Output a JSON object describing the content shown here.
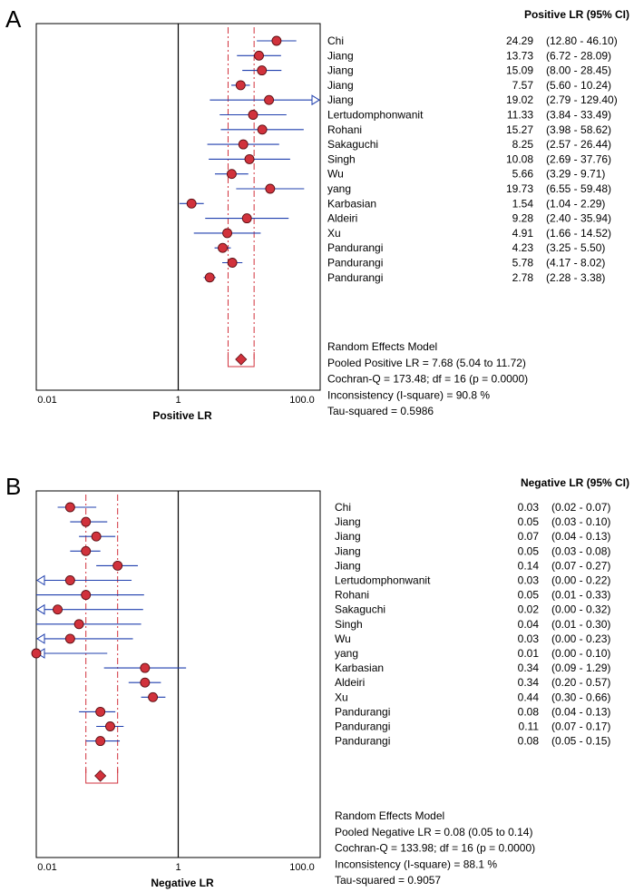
{
  "chart_data": [
    {
      "type": "forest",
      "panel_label": "A",
      "header": "Positive LR (95% CI)",
      "xlabel": "Positive LR",
      "x_scale": "log",
      "xlim": [
        0.01,
        100.0
      ],
      "ticks": [
        {
          "value": 0.01,
          "label": "0.01"
        },
        {
          "value": 1,
          "label": "1"
        },
        {
          "value": 100,
          "label": "100.0"
        }
      ],
      "studies": [
        {
          "name": "Chi",
          "est": 24.29,
          "lo": 12.8,
          "hi": 46.1,
          "est_text": "24.29",
          "ci_text": "(12.80 - 46.10)"
        },
        {
          "name": "Jiang",
          "est": 13.73,
          "lo": 6.72,
          "hi": 28.09,
          "est_text": "13.73",
          "ci_text": "(6.72 - 28.09)"
        },
        {
          "name": "Jiang",
          "est": 15.09,
          "lo": 8.0,
          "hi": 28.45,
          "est_text": "15.09",
          "ci_text": "(8.00 - 28.45)"
        },
        {
          "name": "Jiang",
          "est": 7.57,
          "lo": 5.6,
          "hi": 10.24,
          "est_text": "7.57",
          "ci_text": "(5.60 - 10.24)"
        },
        {
          "name": "Jiang",
          "est": 19.02,
          "lo": 2.79,
          "hi": 129.4,
          "est_text": "19.02",
          "ci_text": "(2.79 - 129.40)"
        },
        {
          "name": "Lertudomphonwanit",
          "est": 11.33,
          "lo": 3.84,
          "hi": 33.49,
          "est_text": "11.33",
          "ci_text": "(3.84 - 33.49)"
        },
        {
          "name": "Rohani",
          "est": 15.27,
          "lo": 3.98,
          "hi": 58.62,
          "est_text": "15.27",
          "ci_text": "(3.98 - 58.62)"
        },
        {
          "name": "Sakaguchi",
          "est": 8.25,
          "lo": 2.57,
          "hi": 26.44,
          "est_text": "8.25",
          "ci_text": "(2.57 - 26.44)"
        },
        {
          "name": "Singh",
          "est": 10.08,
          "lo": 2.69,
          "hi": 37.76,
          "est_text": "10.08",
          "ci_text": "(2.69 - 37.76)"
        },
        {
          "name": "Wu",
          "est": 5.66,
          "lo": 3.29,
          "hi": 9.71,
          "est_text": "5.66",
          "ci_text": "(3.29 - 9.71)"
        },
        {
          "name": "yang",
          "est": 19.73,
          "lo": 6.55,
          "hi": 59.48,
          "est_text": "19.73",
          "ci_text": "(6.55 - 59.48)"
        },
        {
          "name": "Karbasian",
          "est": 1.54,
          "lo": 1.04,
          "hi": 2.29,
          "est_text": "1.54",
          "ci_text": "(1.04 - 2.29)"
        },
        {
          "name": "Aldeiri",
          "est": 9.28,
          "lo": 2.4,
          "hi": 35.94,
          "est_text": "9.28",
          "ci_text": "(2.40 - 35.94)"
        },
        {
          "name": "Xu",
          "est": 4.91,
          "lo": 1.66,
          "hi": 14.52,
          "est_text": "4.91",
          "ci_text": "(1.66 - 14.52)"
        },
        {
          "name": "Pandurangi",
          "est": 4.23,
          "lo": 3.25,
          "hi": 5.5,
          "est_text": "4.23",
          "ci_text": "(3.25 - 5.50)"
        },
        {
          "name": "Pandurangi",
          "est": 5.78,
          "lo": 4.17,
          "hi": 8.02,
          "est_text": "5.78",
          "ci_text": "(4.17 - 8.02)"
        },
        {
          "name": "Pandurangi",
          "est": 2.78,
          "lo": 2.28,
          "hi": 3.38,
          "est_text": "2.78",
          "ci_text": "(2.28 - 3.38)"
        }
      ],
      "pooled": {
        "est": 7.68,
        "lo": 5.04,
        "hi": 11.72
      },
      "summary_lines": [
        "Random Effects Model",
        "Pooled Positive LR = 7.68 (5.04 to 11.72)",
        "Cochran-Q = 173.48; df =  16 (p = 0.0000)",
        "Inconsistency (I-square) = 90.8 %",
        "Tau-squared = 0.5986"
      ]
    },
    {
      "type": "forest",
      "panel_label": "B",
      "header": "Negative LR (95% CI)",
      "xlabel": "Negative LR",
      "x_scale": "log",
      "xlim": [
        0.01,
        100.0
      ],
      "ticks": [
        {
          "value": 0.01,
          "label": "0.01"
        },
        {
          "value": 1,
          "label": "1"
        },
        {
          "value": 100,
          "label": "100.0"
        }
      ],
      "studies": [
        {
          "name": "Chi",
          "est": 0.03,
          "lo": 0.02,
          "hi": 0.07,
          "est_text": "0.03",
          "ci_text": "(0.02 - 0.07)"
        },
        {
          "name": "Jiang",
          "est": 0.05,
          "lo": 0.03,
          "hi": 0.1,
          "est_text": "0.05",
          "ci_text": "(0.03 - 0.10)"
        },
        {
          "name": "Jiang",
          "est": 0.07,
          "lo": 0.04,
          "hi": 0.13,
          "est_text": "0.07",
          "ci_text": "(0.04 - 0.13)"
        },
        {
          "name": "Jiang",
          "est": 0.05,
          "lo": 0.03,
          "hi": 0.08,
          "est_text": "0.05",
          "ci_text": "(0.03 - 0.08)"
        },
        {
          "name": "Jiang",
          "est": 0.14,
          "lo": 0.07,
          "hi": 0.27,
          "est_text": "0.14",
          "ci_text": "(0.07 - 0.27)"
        },
        {
          "name": "Lertudomphonwanit",
          "est": 0.03,
          "lo": 0.0,
          "hi": 0.22,
          "est_text": "0.03",
          "ci_text": "(0.00 - 0.22)"
        },
        {
          "name": "Rohani",
          "est": 0.05,
          "lo": 0.01,
          "hi": 0.33,
          "est_text": "0.05",
          "ci_text": "(0.01 - 0.33)"
        },
        {
          "name": "Sakaguchi",
          "est": 0.02,
          "lo": 0.0,
          "hi": 0.32,
          "est_text": "0.02",
          "ci_text": "(0.00 - 0.32)"
        },
        {
          "name": "Singh",
          "est": 0.04,
          "lo": 0.01,
          "hi": 0.3,
          "est_text": "0.04",
          "ci_text": "(0.01 - 0.30)"
        },
        {
          "name": "Wu",
          "est": 0.03,
          "lo": 0.0,
          "hi": 0.23,
          "est_text": "0.03",
          "ci_text": "(0.00 - 0.23)"
        },
        {
          "name": "yang",
          "est": 0.01,
          "lo": 0.0,
          "hi": 0.1,
          "est_text": "0.01",
          "ci_text": "(0.00 - 0.10)"
        },
        {
          "name": "Karbasian",
          "est": 0.34,
          "lo": 0.09,
          "hi": 1.29,
          "est_text": "0.34",
          "ci_text": "(0.09 - 1.29)"
        },
        {
          "name": "Aldeiri",
          "est": 0.34,
          "lo": 0.2,
          "hi": 0.57,
          "est_text": "0.34",
          "ci_text": "(0.20 - 0.57)"
        },
        {
          "name": "Xu",
          "est": 0.44,
          "lo": 0.3,
          "hi": 0.66,
          "est_text": "0.44",
          "ci_text": "(0.30 - 0.66)"
        },
        {
          "name": "Pandurangi",
          "est": 0.08,
          "lo": 0.04,
          "hi": 0.13,
          "est_text": "0.08",
          "ci_text": "(0.04 - 0.13)"
        },
        {
          "name": "Pandurangi",
          "est": 0.11,
          "lo": 0.07,
          "hi": 0.17,
          "est_text": "0.11",
          "ci_text": "(0.07 - 0.17)"
        },
        {
          "name": "Pandurangi",
          "est": 0.08,
          "lo": 0.05,
          "hi": 0.15,
          "est_text": "0.08",
          "ci_text": "(0.05 - 0.15)"
        }
      ],
      "pooled": {
        "est": 0.08,
        "lo": 0.05,
        "hi": 0.14
      },
      "summary_lines": [
        "Random Effects Model",
        "Pooled Negative LR = 0.08 (0.05 to 0.14)",
        "Cochran-Q = 133.98; df =  16 (p = 0.0000)",
        "Inconsistency (I-square) = 88.1 %",
        "Tau-squared = 0.9057"
      ]
    }
  ],
  "colors": {
    "marker_fill": "#d1323c",
    "marker_stroke": "#5a0d12",
    "ci_line": "#1f3fae",
    "pooled_guides": "#d1323c",
    "axis": "#000000"
  }
}
